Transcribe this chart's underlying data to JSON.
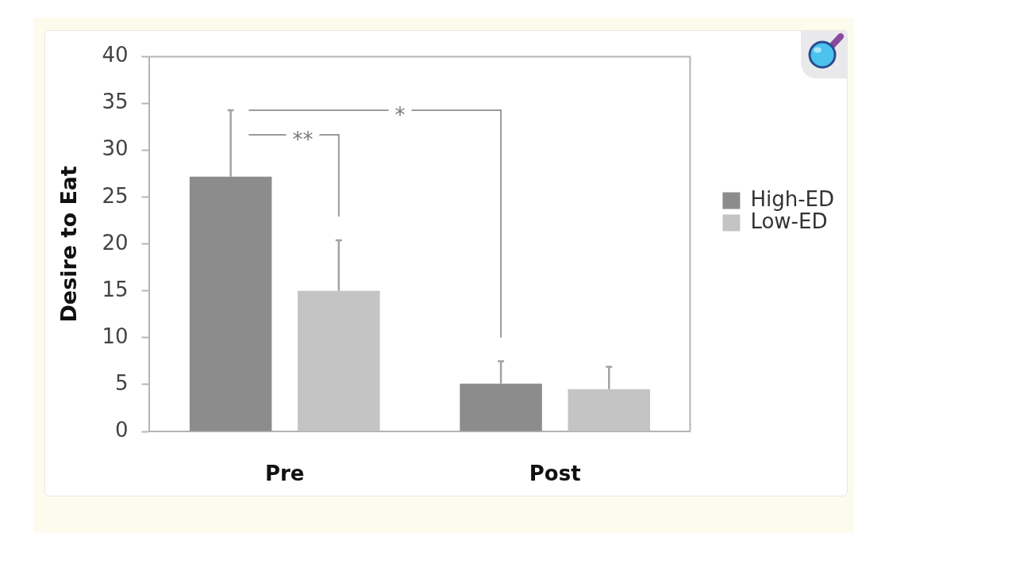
{
  "chart_data": {
    "type": "bar",
    "ylabel": "Desire to Eat",
    "categories": [
      "Pre",
      "Post"
    ],
    "series": [
      {
        "name": "High-ED",
        "color": "#8c8c8c",
        "values": [
          27.2,
          5.1
        ],
        "errors": [
          [
            27.2,
            34.3
          ],
          [
            5.1,
            7.5
          ]
        ]
      },
      {
        "name": "Low-ED",
        "color": "#c4c4c4",
        "values": [
          15.0,
          4.5
        ],
        "errors": [
          [
            15.0,
            20.4
          ],
          [
            4.5,
            6.9
          ]
        ]
      }
    ],
    "ylim": [
      0,
      40
    ],
    "yticks": [
      0,
      5,
      10,
      15,
      20,
      25,
      30,
      35,
      40
    ],
    "legend": "right",
    "annotations": [
      "**",
      "*"
    ]
  }
}
